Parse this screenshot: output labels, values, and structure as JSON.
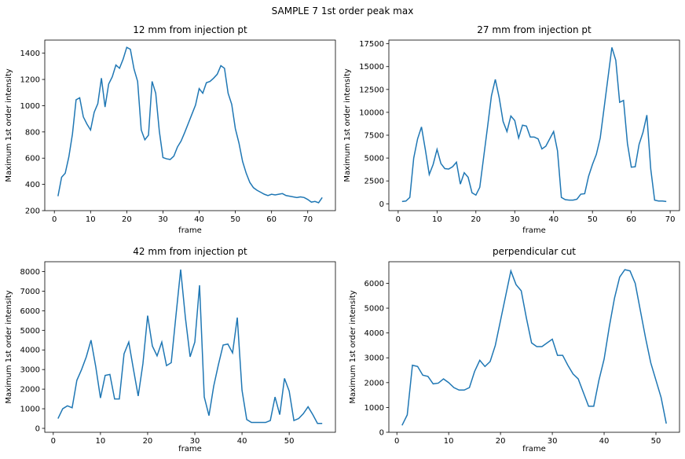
{
  "figure": {
    "suptitle": "SAMPLE 7 1st order peak max",
    "line_color": "#1f77b4"
  },
  "chart_data": [
    {
      "type": "line",
      "title": "12 mm from injection pt",
      "xlabel": "frame",
      "ylabel": "Maximum 1st order intensity",
      "xlim": [
        -2.65,
        77.65
      ],
      "ylim": [
        200,
        1500
      ],
      "xticks": [
        0,
        10,
        20,
        30,
        40,
        50,
        60,
        70
      ],
      "yticks": [
        200,
        400,
        600,
        800,
        1000,
        1200,
        1400
      ],
      "x_start": 1,
      "values": [
        310,
        455,
        485,
        610,
        785,
        1045,
        1060,
        915,
        860,
        815,
        950,
        1015,
        1210,
        990,
        1165,
        1220,
        1310,
        1285,
        1355,
        1445,
        1430,
        1280,
        1185,
        815,
        740,
        775,
        1185,
        1095,
        805,
        605,
        595,
        590,
        615,
        685,
        730,
        795,
        865,
        935,
        1005,
        1130,
        1095,
        1175,
        1185,
        1210,
        1240,
        1305,
        1285,
        1095,
        1010,
        825,
        715,
        575,
        485,
        415,
        375,
        355,
        340,
        325,
        315,
        325,
        320,
        325,
        330,
        315,
        310,
        305,
        300,
        305,
        300,
        285,
        265,
        270,
        260,
        300
      ]
    },
    {
      "type": "line",
      "title": "27 mm from injection pt",
      "xlabel": "frame",
      "ylabel": "Maximum 1st order intensity",
      "xlim": [
        -2.4,
        72.4
      ],
      "ylim": [
        -750,
        17900
      ],
      "xticks": [
        0,
        10,
        20,
        30,
        40,
        50,
        60,
        70
      ],
      "yticks": [
        0,
        2500,
        5000,
        7500,
        10000,
        12500,
        15000,
        17500
      ],
      "x_start": 1,
      "values": [
        250,
        300,
        700,
        5000,
        7100,
        8400,
        5900,
        3200,
        4300,
        5950,
        4400,
        3850,
        3800,
        4050,
        4550,
        2150,
        3400,
        2900,
        1200,
        950,
        1800,
        5100,
        8400,
        11800,
        13600,
        11600,
        9000,
        7900,
        9600,
        9100,
        7200,
        8600,
        8500,
        7300,
        7300,
        7100,
        6000,
        6300,
        7100,
        7900,
        5800,
        700,
        450,
        400,
        400,
        500,
        1050,
        1100,
        3000,
        4300,
        5400,
        7200,
        10500,
        13800,
        17100,
        15700,
        11100,
        11300,
        6600,
        4000,
        4050,
        6500,
        7800,
        9700,
        3800,
        400,
        300,
        300,
        250
      ]
    },
    {
      "type": "line",
      "title": "42 mm from injection pt",
      "xlabel": "frame",
      "ylabel": "Maximum 1st order intensity",
      "xlim": [
        -1.8,
        59.8
      ],
      "ylim": [
        -200,
        8500
      ],
      "xticks": [
        0,
        10,
        20,
        30,
        40,
        50
      ],
      "yticks": [
        0,
        1000,
        2000,
        3000,
        4000,
        5000,
        6000,
        7000,
        8000
      ],
      "x_start": 1,
      "values": [
        500,
        1000,
        1150,
        1050,
        2450,
        3000,
        3650,
        4500,
        3150,
        1550,
        2700,
        2750,
        1500,
        1500,
        3800,
        4400,
        3000,
        1650,
        3300,
        5750,
        4200,
        3700,
        4400,
        3200,
        3350,
        5750,
        8100,
        5650,
        3650,
        4400,
        7300,
        1600,
        650,
        2150,
        3250,
        4250,
        4300,
        3850,
        5650,
        1950,
        450,
        300,
        300,
        300,
        300,
        400,
        1600,
        700,
        2550,
        1900,
        400,
        500,
        750,
        1100,
        700,
        250,
        250
      ]
    },
    {
      "type": "line",
      "title": "perpendicular cut",
      "xlabel": "frame",
      "ylabel": "Maximum 1st order intensity",
      "xlim": [
        -1.55,
        54.55
      ],
      "ylim": [
        0,
        6870
      ],
      "xticks": [
        0,
        10,
        20,
        30,
        40,
        50
      ],
      "yticks": [
        0,
        1000,
        2000,
        3000,
        4000,
        5000,
        6000
      ],
      "x_start": 1,
      "values": [
        280,
        700,
        2700,
        2650,
        2300,
        2250,
        1950,
        1980,
        2150,
        2000,
        1800,
        1700,
        1700,
        1800,
        2450,
        2900,
        2650,
        2850,
        3500,
        4500,
        5500,
        6500,
        5950,
        5700,
        4600,
        3600,
        3450,
        3450,
        3600,
        3750,
        3100,
        3100,
        2700,
        2350,
        2150,
        1600,
        1050,
        1050,
        2100,
        2950,
        4250,
        5400,
        6250,
        6550,
        6500,
        6000,
        4900,
        3800,
        2800,
        2100,
        1400,
        350
      ]
    }
  ]
}
